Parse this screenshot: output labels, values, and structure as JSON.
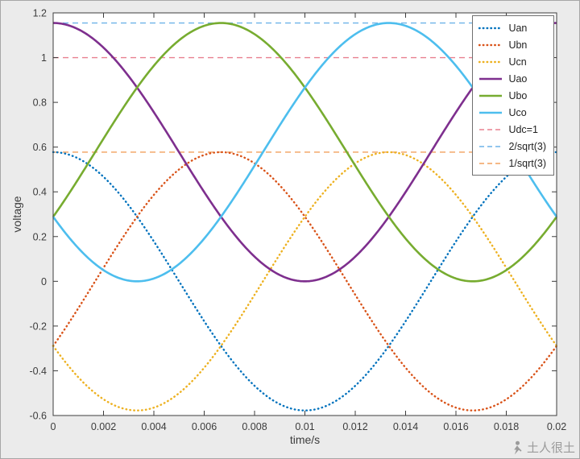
{
  "figure": {
    "background": "#ebebeb",
    "plot_background": "#ffffff",
    "axis_color": "#3c3c3c"
  },
  "chart_data": {
    "type": "line",
    "title": "",
    "xlabel": "time/s",
    "ylabel": "voltage",
    "xlim": [
      0,
      0.02
    ],
    "ylim": [
      -0.6,
      1.2
    ],
    "grid": false,
    "frequency_hz": 50,
    "xticks": [
      0,
      0.002,
      0.004,
      0.006,
      0.008,
      0.01,
      0.012,
      0.014,
      0.016,
      0.018,
      0.02
    ],
    "xtick_labels": [
      "0",
      "0.002",
      "0.004",
      "0.006",
      "0.008",
      "0.01",
      "0.012",
      "0.014",
      "0.016",
      "0.018",
      "0.02"
    ],
    "yticks": [
      -0.6,
      -0.4,
      -0.2,
      0,
      0.2,
      0.4,
      0.6,
      0.8,
      1,
      1.2
    ],
    "ytick_labels": [
      "-0.6",
      "-0.4",
      "-0.2",
      "0",
      "0.2",
      "0.4",
      "0.6",
      "0.8",
      "1",
      "1.2"
    ],
    "series": [
      {
        "name": "Uan",
        "color": "#0072BD",
        "line_style": "dotted",
        "amplitude": 0.5774,
        "offset": 0,
        "phase_deg": 0
      },
      {
        "name": "Ubn",
        "color": "#D95319",
        "line_style": "dotted",
        "amplitude": 0.5774,
        "offset": 0,
        "phase_deg": -120
      },
      {
        "name": "Ucn",
        "color": "#EDB120",
        "line_style": "dotted",
        "amplitude": 0.5774,
        "offset": 0,
        "phase_deg": 120
      },
      {
        "name": "Uao",
        "color": "#7E2F8E",
        "line_style": "solid",
        "amplitude": 0.5774,
        "offset": 0.5774,
        "phase_deg": 0
      },
      {
        "name": "Ubo",
        "color": "#77AC30",
        "line_style": "solid",
        "amplitude": 0.5774,
        "offset": 0.5774,
        "phase_deg": -120
      },
      {
        "name": "Uco",
        "color": "#4DBEEE",
        "line_style": "solid",
        "amplitude": 0.5774,
        "offset": 0.5774,
        "phase_deg": 120
      }
    ],
    "reference_lines": [
      {
        "name": "Udc=1",
        "value": 1,
        "color": "#E8808F",
        "line_style": "dashed"
      },
      {
        "name": "2/sqrt(3)",
        "value": 1.1547,
        "color": "#6DB3E8",
        "line_style": "dashed"
      },
      {
        "name": "1/sqrt(3)",
        "value": 0.5774,
        "color": "#F2A05E",
        "line_style": "dashed"
      }
    ],
    "legend": {
      "position": "top-right",
      "entries": [
        "Uan",
        "Ubn",
        "Ucn",
        "Uao",
        "Ubo",
        "Uco",
        "Udc=1",
        "2/sqrt(3)",
        "1/sqrt(3)"
      ]
    }
  },
  "watermark": {
    "text": "土人很土"
  }
}
